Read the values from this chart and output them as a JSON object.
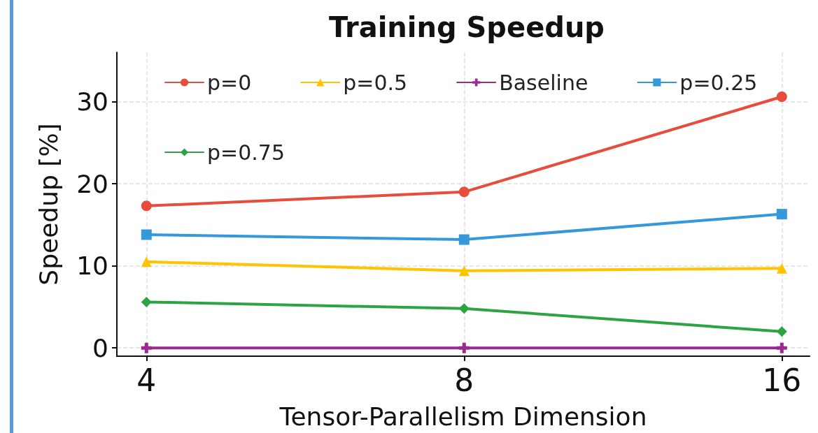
{
  "chart_data": {
    "type": "line",
    "title": "Training Speedup",
    "xlabel": "Tensor-Parallelism Dimension",
    "ylabel": "Speedup [%]",
    "x": [
      4,
      8,
      16
    ],
    "log": "x",
    "xlim": [
      3.75,
      17
    ],
    "xticks": [
      4,
      8,
      16
    ],
    "ylim": [
      -1,
      36
    ],
    "yticks": [
      0,
      10,
      20,
      30
    ],
    "grid": true,
    "legend": "top",
    "line_style": "solid",
    "series": [
      {
        "name": "p=0",
        "color": "#e74c3c",
        "marker": "circle",
        "values": [
          17.3,
          19.0,
          30.6
        ]
      },
      {
        "name": "p=0.25",
        "color": "#3498db",
        "marker": "square",
        "values": [
          13.8,
          13.2,
          16.3
        ]
      },
      {
        "name": "p=0.5",
        "color": "#ffc300",
        "marker": "triangle",
        "values": [
          10.5,
          9.4,
          9.7
        ]
      },
      {
        "name": "p=0.75",
        "color": "#2ca444",
        "marker": "diamond",
        "values": [
          5.6,
          4.8,
          2.0
        ]
      },
      {
        "name": "Baseline",
        "color": "#9b2a8e",
        "marker": "cross",
        "values": [
          0,
          0,
          0
        ]
      }
    ]
  }
}
